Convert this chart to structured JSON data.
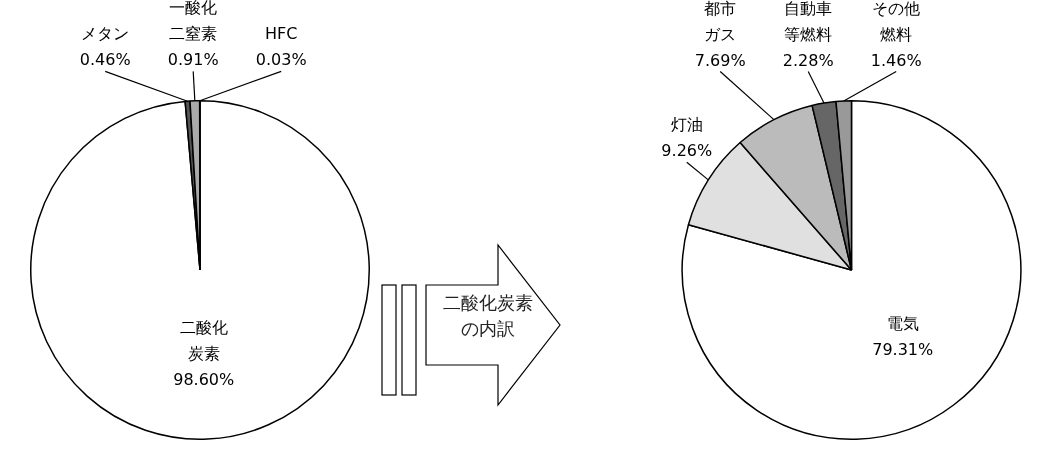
{
  "chart_data": [
    {
      "type": "pie",
      "categories": [
        "二酸化炭素",
        "メタン",
        "一酸化二窒素",
        "HFC"
      ],
      "values": [
        98.6,
        0.46,
        0.91,
        0.03
      ],
      "value_labels": [
        "98.60%",
        "0.46%",
        "0.91%",
        "0.03%"
      ],
      "colors": [
        "#ffffff",
        "#555555",
        "#aaaaaa",
        "#dddddd"
      ],
      "legend": false
    },
    {
      "type": "pie",
      "categories": [
        "電気",
        "灯油",
        "都市ガス",
        "自動車等燃料",
        "その他燃料"
      ],
      "values": [
        79.31,
        9.26,
        7.69,
        2.28,
        1.46
      ],
      "value_labels": [
        "79.31%",
        "9.26%",
        "7.69%",
        "2.28%",
        "1.46%"
      ],
      "colors": [
        "#ffffff",
        "#e0e0e0",
        "#bbbbbb",
        "#666666",
        "#999999"
      ],
      "legend": false,
      "annotations": [
        "二酸化炭素の内訳"
      ]
    }
  ]
}
